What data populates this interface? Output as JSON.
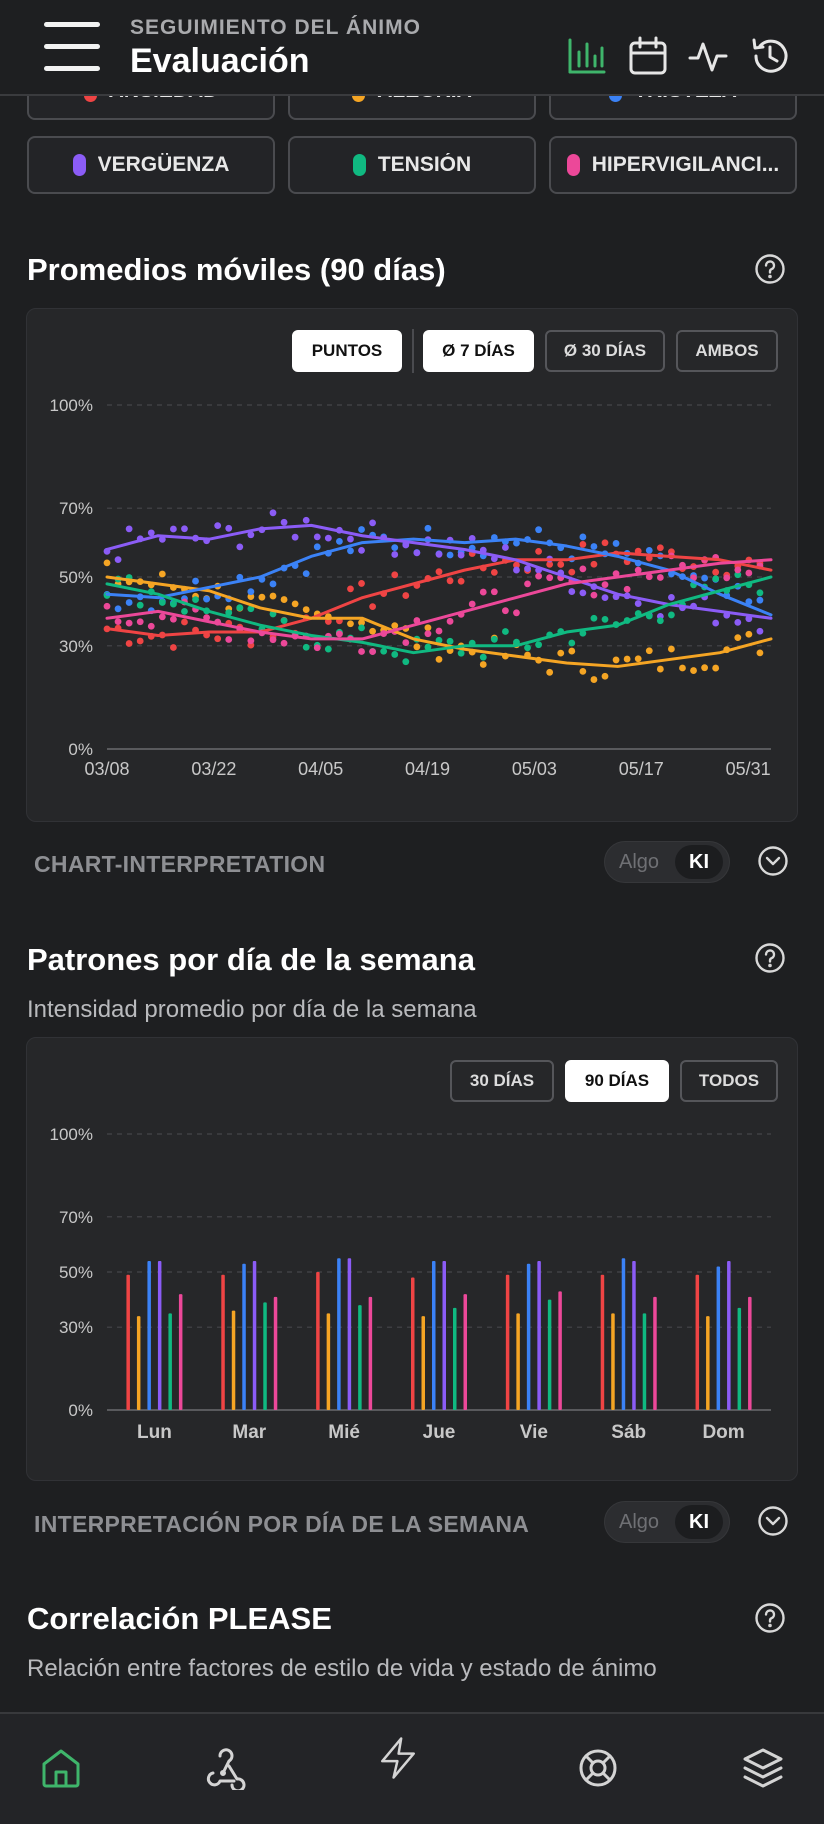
{
  "header": {
    "subtitle": "SEGUIMIENTO DEL ÁNIMO",
    "title": "Evaluación",
    "icons": [
      "bar-chart-icon",
      "calendar-icon",
      "activity-icon",
      "history-icon"
    ],
    "active_color": "#3fb56b"
  },
  "emotion_chips": [
    {
      "label": "ANSIEDAD",
      "color": "#ef4444"
    },
    {
      "label": "ALEGRÍA",
      "color": "#f5a524"
    },
    {
      "label": "TRISTEZA",
      "color": "#3b82f6"
    },
    {
      "label": "VERGÜENZA",
      "color": "#8b5cf6"
    },
    {
      "label": "TENSIÓN",
      "color": "#10b981"
    },
    {
      "label": "HIPERVIGILANCI...",
      "color": "#ec4899"
    }
  ],
  "moving_avg": {
    "title": "Promedios móviles (90 días)",
    "buttons": [
      {
        "label": "PUNTOS",
        "active": true
      },
      {
        "label": "Ø 7 DÍAS",
        "active": true
      },
      {
        "label": "Ø 30 DÍAS",
        "active": false
      },
      {
        "label": "AMBOS",
        "active": false
      }
    ]
  },
  "chart_interp": {
    "title": "CHART-INTERPRETATION",
    "toggle_a": "Algo",
    "toggle_b": "KI"
  },
  "weekday": {
    "title": "Patrones por día de la semana",
    "subtitle": "Intensidad promedio por día de la semana",
    "buttons": [
      {
        "label": "30 DÍAS",
        "active": false
      },
      {
        "label": "90 DÍAS",
        "active": true
      },
      {
        "label": "TODOS",
        "active": false
      }
    ]
  },
  "weekday_interp": {
    "title": "INTERPRETACIÓN POR DÍA DE LA SEMANA",
    "toggle_a": "Algo",
    "toggle_b": "KI"
  },
  "please": {
    "title": "Correlación PLEASE",
    "subtitle": "Relación entre factores de estilo de vida y estado de ánimo"
  },
  "bottom_nav": [
    "home-icon",
    "webhook-icon",
    "lightning-icon",
    "lifebuoy-icon",
    "layers-icon"
  ],
  "chart_data": [
    {
      "type": "line",
      "y_ticks": [
        "100%",
        "70%",
        "50%",
        "30%",
        "0%"
      ],
      "x_ticks": [
        "03/08",
        "03/22",
        "04/05",
        "04/19",
        "05/03",
        "05/17",
        "05/31"
      ],
      "ylim": [
        0,
        100
      ],
      "x": [
        "03/08",
        "03/15",
        "03/22",
        "03/29",
        "04/05",
        "04/12",
        "04/19",
        "04/26",
        "05/03",
        "05/10",
        "05/17",
        "05/24",
        "05/31",
        "06/03"
      ],
      "series": [
        {
          "color": "#ef4444",
          "values": [
            35,
            33,
            34,
            34,
            38,
            44,
            48,
            52,
            55,
            55,
            57,
            56,
            55,
            52
          ]
        },
        {
          "color": "#f5a524",
          "values": [
            50,
            48,
            46,
            41,
            38,
            38,
            32,
            29,
            27,
            25,
            24,
            26,
            28,
            32
          ]
        },
        {
          "color": "#3b82f6",
          "values": [
            45,
            44,
            47,
            50,
            56,
            60,
            61,
            60,
            61,
            59,
            56,
            52,
            45,
            39
          ]
        },
        {
          "color": "#8b5cf6",
          "values": [
            58,
            62,
            61,
            64,
            65,
            62,
            60,
            58,
            55,
            50,
            45,
            42,
            40,
            38
          ]
        },
        {
          "color": "#10b981",
          "values": [
            48,
            45,
            40,
            36,
            33,
            31,
            28,
            30,
            30,
            34,
            36,
            42,
            46,
            50
          ]
        },
        {
          "color": "#ec4899",
          "values": [
            38,
            40,
            37,
            34,
            32,
            32,
            36,
            40,
            44,
            48,
            50,
            52,
            54,
            55
          ]
        }
      ]
    },
    {
      "type": "bar",
      "y_ticks": [
        "100%",
        "70%",
        "50%",
        "30%",
        "0%"
      ],
      "categories": [
        "Lun",
        "Mar",
        "Mié",
        "Jue",
        "Vie",
        "Sáb",
        "Dom"
      ],
      "ylim": [
        0,
        100
      ],
      "series": [
        {
          "color": "#ef4444",
          "values": [
            49,
            49,
            50,
            48,
            49,
            49,
            49
          ]
        },
        {
          "color": "#f5a524",
          "values": [
            34,
            36,
            35,
            34,
            35,
            35,
            34
          ]
        },
        {
          "color": "#3b82f6",
          "values": [
            54,
            53,
            55,
            54,
            53,
            55,
            52
          ]
        },
        {
          "color": "#8b5cf6",
          "values": [
            54,
            54,
            55,
            54,
            54,
            54,
            54
          ]
        },
        {
          "color": "#10b981",
          "values": [
            35,
            39,
            38,
            37,
            40,
            35,
            37
          ]
        },
        {
          "color": "#ec4899",
          "values": [
            42,
            41,
            41,
            42,
            43,
            41,
            41
          ]
        }
      ]
    }
  ]
}
